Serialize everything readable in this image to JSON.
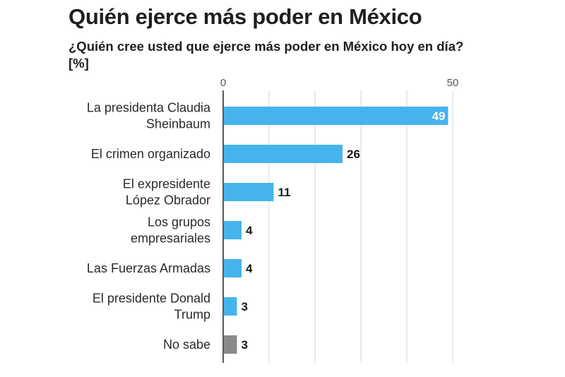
{
  "chart_data": {
    "type": "bar",
    "orientation": "horizontal",
    "title": "Quién ejerce más poder en México",
    "subtitle": "¿Quién cree usted que ejerce más poder en México hoy en día? [%]",
    "categories": [
      [
        "La presidenta Claudia",
        "Sheinbaum"
      ],
      [
        "El crimen organizado"
      ],
      [
        "El expresidente",
        "López Obrador"
      ],
      [
        "Los grupos",
        "empresariales"
      ],
      [
        "Las Fuerzas Armadas"
      ],
      [
        "El presidente Donald",
        "Trump"
      ],
      [
        "No sabe"
      ]
    ],
    "values": [
      49,
      26,
      11,
      4,
      4,
      3,
      3
    ],
    "value_labels": [
      "49",
      "26",
      "11",
      "4",
      "4",
      "3",
      "3"
    ],
    "colors": [
      "#46b4ec",
      "#46b4ec",
      "#46b4ec",
      "#46b4ec",
      "#46b4ec",
      "#46b4ec",
      "#8a8a8a"
    ],
    "xlim": [
      0,
      50
    ],
    "xticks": [
      0,
      50
    ],
    "xtick_labels": [
      "0",
      "50"
    ],
    "grid": true
  }
}
